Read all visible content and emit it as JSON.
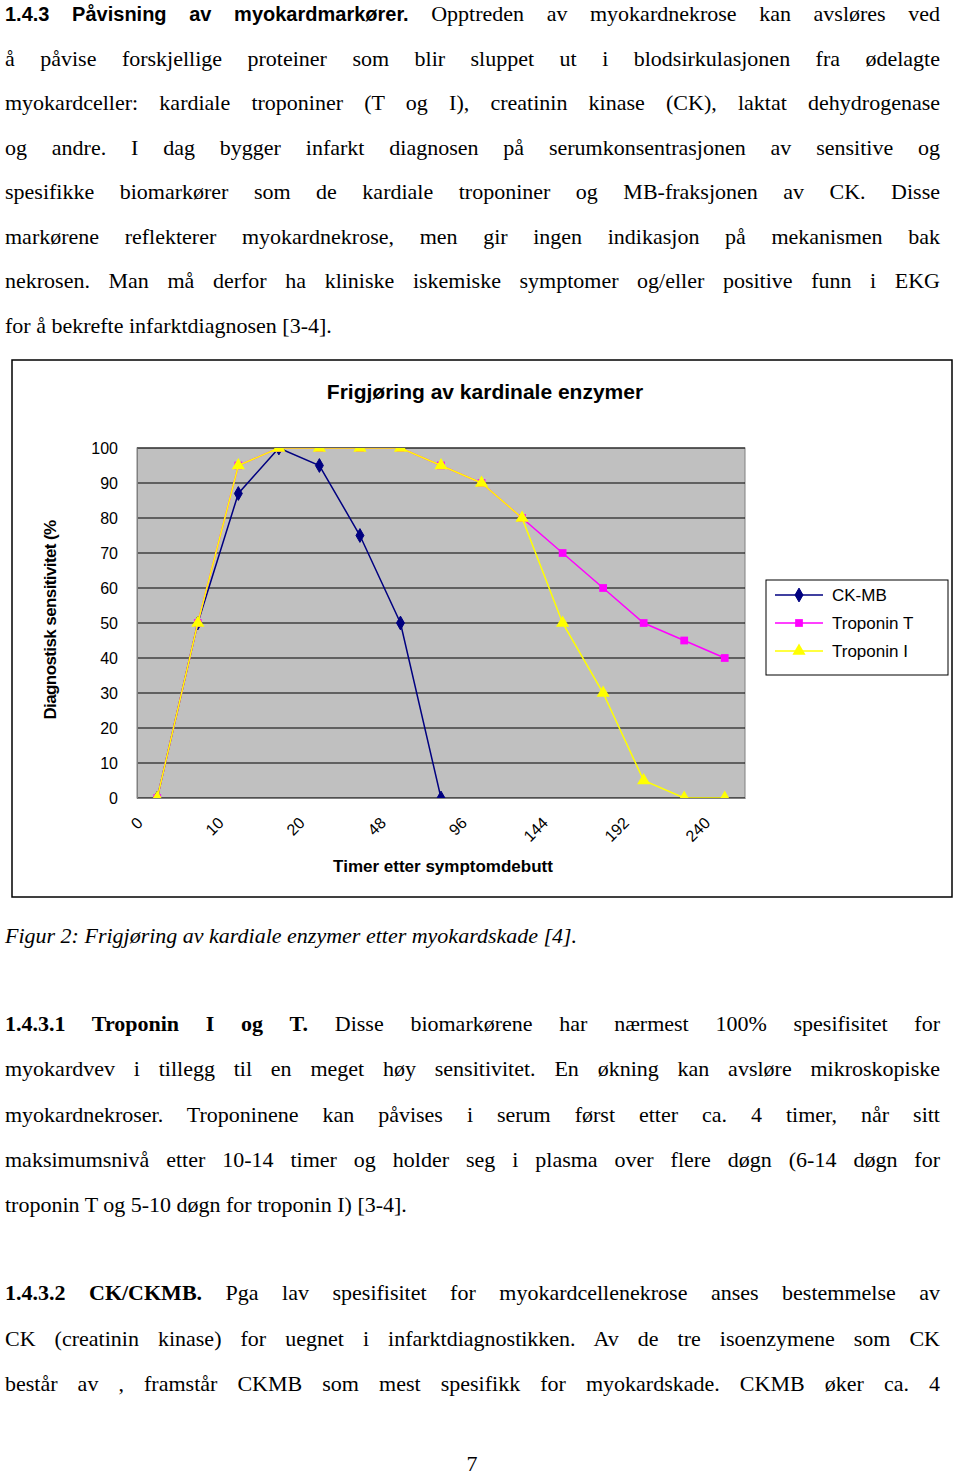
{
  "document": {
    "intro": {
      "heading": "1.4.3 Påvisning av myokardmarkører.",
      "lines": [
        "Opptreden av myokardnekrose kan avsløres ved",
        "å påvise forskjellige proteiner som blir sluppet ut i blodsirkulasjonen fra ødelagte",
        "myokardceller: kardiale troponiner (T og I), creatinin kinase (CK), laktat dehydrogenase",
        "og andre. I dag bygger infarkt diagnosen på serumkonsentrasjonen av sensitive og",
        "spesifikke biomarkører som de kardiale troponiner og MB-fraksjonen av CK. Disse",
        "markørene reflekterer myokardnekrose, men gir ingen indikasjon på mekanismen bak",
        "nekrosen. Man må derfor ha kliniske iskemiske symptomer og/eller positive funn i EKG",
        "for å bekrefte infarktdiagnosen [3-4]."
      ]
    },
    "caption": "Figur 2: Frigjøring av kardiale enzymer etter myokardskade [4].",
    "subsections": [
      {
        "heading": "1.4.3.1 Troponin I og T.",
        "lines": [
          "Disse biomarkørene har nærmest 100% spesifisitet for",
          "myokardvev i tillegg til en meget høy sensitivitet. En økning kan avsløre mikroskopiske",
          "myokardnekroser. Troponinene kan påvises i serum først etter ca. 4 timer, når sitt",
          "maksimumsnivå etter 10-14 timer og holder seg i plasma over flere døgn (6-14 døgn for",
          "troponin T og 5-10 døgn for troponin I) [3-4]."
        ]
      },
      {
        "heading": "1.4.3.2 CK/CKMB.",
        "lines": [
          "Pga lav spesifisitet for myokardcellenekrose anses bestemmelse av",
          "CK (creatinin kinase) for uegnet i infarktdiagnostikken. Av de tre isoenzymene som CK",
          "består av , framstår CKMB som mest spesifikk for myokardskade. CKMB øker ca. 4"
        ]
      }
    ],
    "page_number": 7
  },
  "chart_data": {
    "type": "line",
    "title": "Frigjøring av kardinale enzymer",
    "x_label": "Timer etter symptomdebutt",
    "y_label": "Diagnostisk sensitivitet (%",
    "categories": [
      "0",
      null,
      "10",
      null,
      "20",
      null,
      "48",
      null,
      "96",
      null,
      "144",
      null,
      "192",
      null,
      "240"
    ],
    "series": [
      {
        "name": "CK-MB",
        "color": "#000080",
        "marker": "diamond",
        "values": [
          0,
          50,
          87,
          100,
          95,
          75,
          50,
          0,
          null,
          null,
          null,
          null,
          null,
          null,
          null
        ]
      },
      {
        "name": "Troponin T",
        "color": "#ff00ff",
        "marker": "square",
        "values": [
          0,
          50,
          95,
          100,
          100,
          100,
          100,
          95,
          90,
          80,
          70,
          60,
          50,
          45,
          40
        ]
      },
      {
        "name": "Troponin I",
        "color": "#ffff00",
        "marker": "triangle",
        "values": [
          0,
          50,
          95,
          100,
          100,
          100,
          100,
          95,
          90,
          80,
          50,
          30,
          5,
          0,
          0
        ]
      }
    ],
    "ylim": [
      0,
      100
    ],
    "yticks": [
      0,
      10,
      20,
      30,
      40,
      50,
      60,
      70,
      80,
      90,
      100
    ],
    "grid": true,
    "legend": "right"
  }
}
